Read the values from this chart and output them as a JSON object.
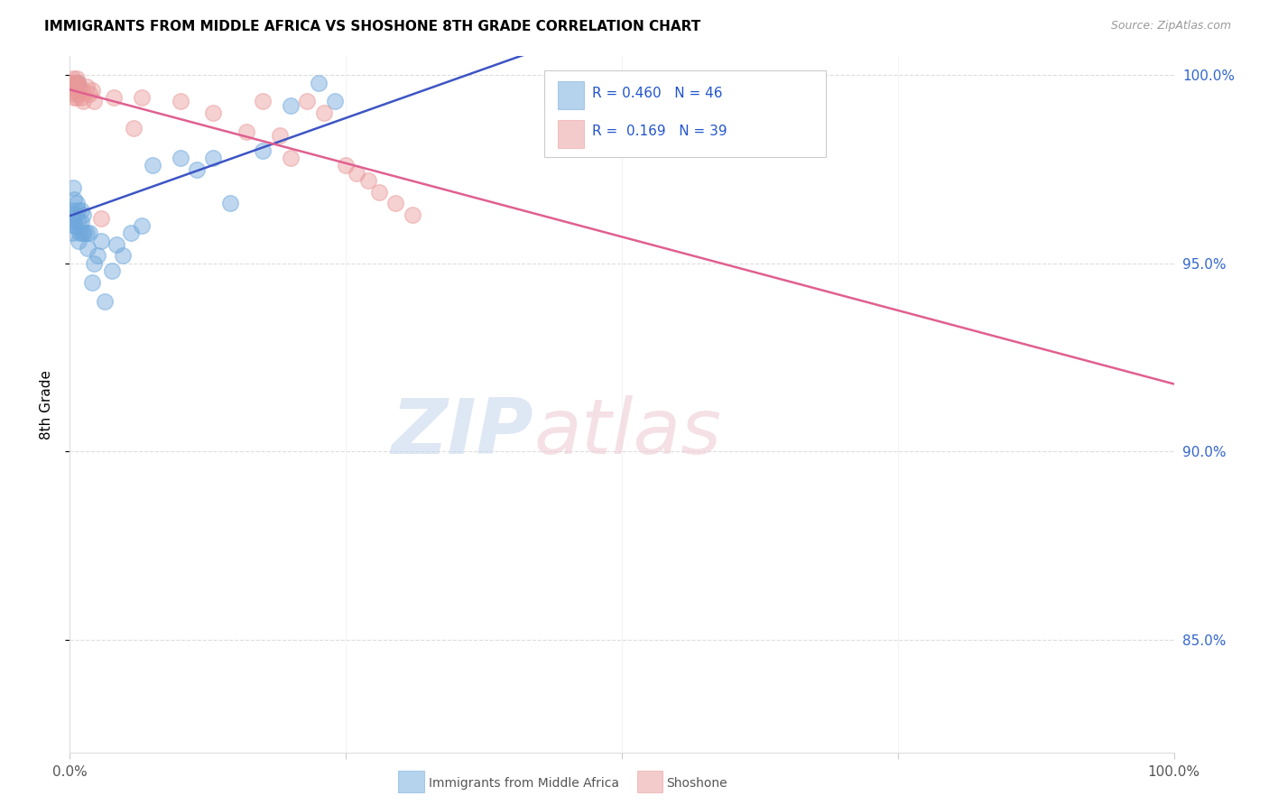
{
  "title": "IMMIGRANTS FROM MIDDLE AFRICA VS SHOSHONE 8TH GRADE CORRELATION CHART",
  "source": "Source: ZipAtlas.com",
  "ylabel": "8th Grade",
  "legend_label_1": "Immigrants from Middle Africa",
  "legend_label_2": "Shoshone",
  "r1": 0.46,
  "n1": 46,
  "r2": 0.169,
  "n2": 39,
  "blue_color": "#6fa8dc",
  "pink_color": "#ea9999",
  "blue_line_color": "#3d55c4",
  "pink_line_color": "#e06090",
  "ylim_min": 0.82,
  "ylim_max": 1.005,
  "xlim_min": 0.0,
  "xlim_max": 1.0,
  "yticks": [
    0.85,
    0.9,
    0.95,
    1.0
  ],
  "ytick_labels": [
    "85.0%",
    "90.0%",
    "95.0%",
    "100.0%"
  ],
  "xtick_positions": [
    0.0,
    0.25,
    0.5,
    0.75,
    1.0
  ],
  "xtick_labels": [
    "0.0%",
    "",
    "",
    "",
    "100.0%"
  ],
  "blue_x": [
    0.001,
    0.002,
    0.002,
    0.003,
    0.003,
    0.003,
    0.004,
    0.004,
    0.004,
    0.005,
    0.005,
    0.005,
    0.006,
    0.006,
    0.007,
    0.007,
    0.008,
    0.008,
    0.009,
    0.01,
    0.01,
    0.011,
    0.012,
    0.013,
    0.015,
    0.016,
    0.018,
    0.02,
    0.022,
    0.025,
    0.028,
    0.032,
    0.038,
    0.042,
    0.048,
    0.055,
    0.065,
    0.075,
    0.1,
    0.115,
    0.13,
    0.145,
    0.175,
    0.2,
    0.225,
    0.24
  ],
  "blue_y": [
    0.964,
    0.961,
    0.958,
    0.998,
    0.97,
    0.962,
    0.998,
    0.967,
    0.96,
    0.998,
    0.963,
    0.96,
    0.998,
    0.966,
    0.964,
    0.998,
    0.961,
    0.956,
    0.958,
    0.961,
    0.964,
    0.958,
    0.963,
    0.958,
    0.958,
    0.954,
    0.958,
    0.945,
    0.95,
    0.952,
    0.956,
    0.94,
    0.948,
    0.955,
    0.952,
    0.958,
    0.96,
    0.976,
    0.978,
    0.975,
    0.978,
    0.966,
    0.98,
    0.992,
    0.998,
    0.993
  ],
  "pink_x": [
    0.001,
    0.002,
    0.002,
    0.003,
    0.003,
    0.004,
    0.004,
    0.005,
    0.005,
    0.006,
    0.006,
    0.007,
    0.008,
    0.009,
    0.01,
    0.011,
    0.012,
    0.015,
    0.018,
    0.02,
    0.022,
    0.028,
    0.04,
    0.058,
    0.065,
    0.1,
    0.13,
    0.16,
    0.175,
    0.19,
    0.2,
    0.215,
    0.23,
    0.25,
    0.26,
    0.27,
    0.28,
    0.295,
    0.31
  ],
  "pink_y": [
    0.998,
    0.998,
    0.997,
    0.999,
    0.996,
    0.998,
    0.994,
    0.998,
    0.995,
    0.999,
    0.994,
    0.998,
    0.995,
    0.997,
    0.994,
    0.996,
    0.993,
    0.997,
    0.995,
    0.996,
    0.993,
    0.962,
    0.994,
    0.986,
    0.994,
    0.993,
    0.99,
    0.985,
    0.993,
    0.984,
    0.978,
    0.993,
    0.99,
    0.976,
    0.974,
    0.972,
    0.969,
    0.966,
    0.963
  ]
}
